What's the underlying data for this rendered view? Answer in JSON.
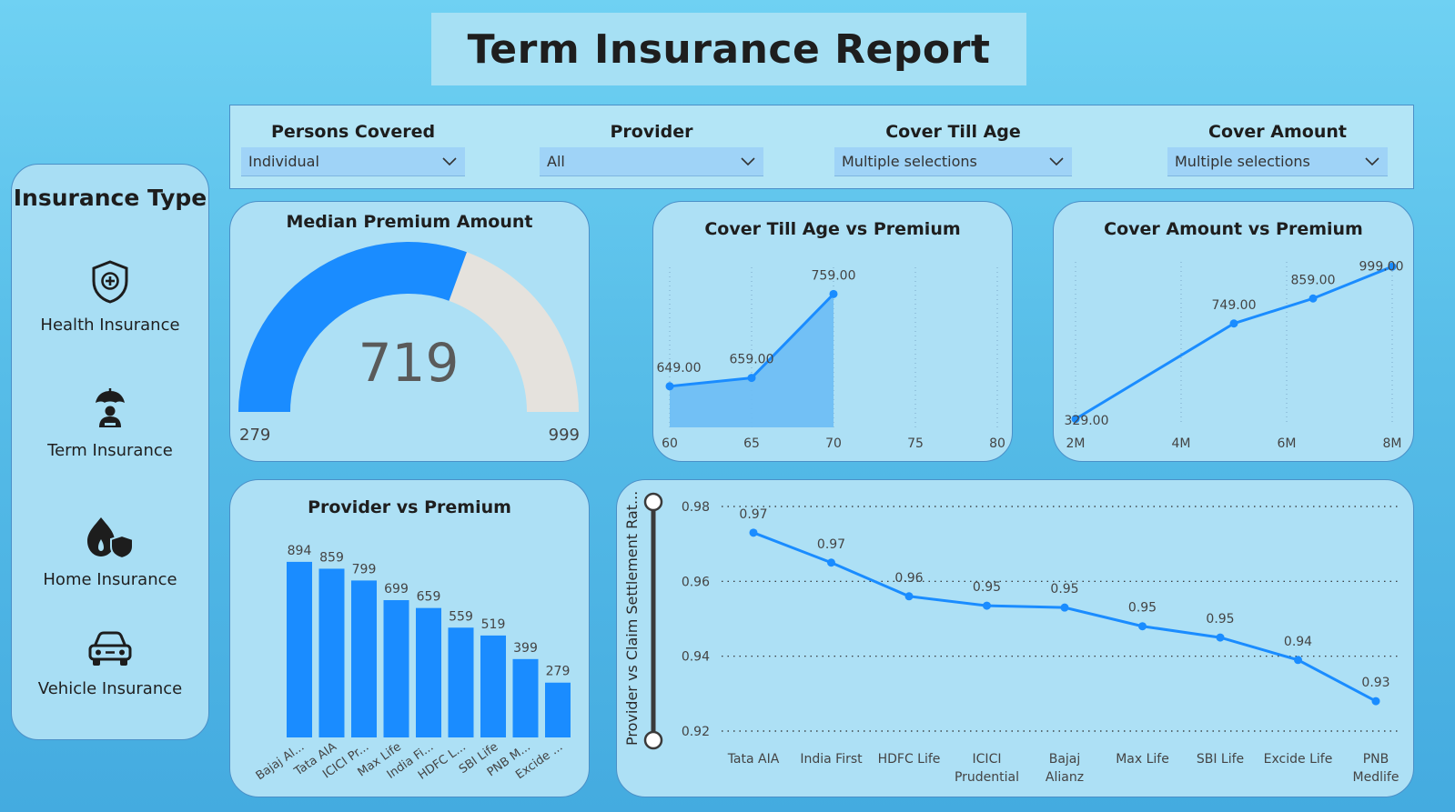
{
  "header": {
    "title": "Term Insurance Report"
  },
  "filters": [
    {
      "label": "Persons Covered",
      "value": "Individual"
    },
    {
      "label": "Provider",
      "value": "All"
    },
    {
      "label": "Cover Till Age",
      "value": "Multiple selections"
    },
    {
      "label": "Cover Amount",
      "value": "Multiple selections"
    }
  ],
  "sidebar": {
    "title": "Insurance Type",
    "items": [
      {
        "label": "Health Insurance",
        "icon": "shield-plus-icon"
      },
      {
        "label": "Term Insurance",
        "icon": "umbrella-person-icon"
      },
      {
        "label": "Home Insurance",
        "icon": "fire-shield-icon"
      },
      {
        "label": "Vehicle Insurance",
        "icon": "car-icon"
      }
    ]
  },
  "colors": {
    "accent": "#1a8cff",
    "gauge_rest": "#e5e2dd",
    "area_fill": "#6cbcf5"
  },
  "gauge": {
    "title": "Median Premium Amount",
    "value": "719",
    "min": "279",
    "max": "999",
    "numeric_value": 719,
    "numeric_min": 279,
    "numeric_max": 999
  },
  "chart_data": [
    {
      "type": "area",
      "title": "Cover Till Age vs Premium",
      "x": [
        60,
        65,
        70
      ],
      "values": [
        649,
        659,
        759
      ],
      "data_labels": [
        "649.00",
        "659.00",
        "759.00"
      ],
      "x_ticks": [
        "60",
        "65",
        "70",
        "75",
        "80"
      ],
      "xlim": [
        60,
        80
      ],
      "ylim": [
        600,
        780
      ]
    },
    {
      "type": "line",
      "title": "Cover Amount vs Premium",
      "x": [
        2,
        5,
        6.5,
        8
      ],
      "values": [
        329,
        749,
        859,
        999
      ],
      "data_labels": [
        "329.00",
        "749.00",
        "859.00",
        "999.00"
      ],
      "x_ticks": [
        "2M",
        "4M",
        "6M",
        "8M"
      ],
      "xlim": [
        2,
        8
      ],
      "ylim": [
        300,
        1020
      ]
    },
    {
      "type": "bar",
      "title": "Provider vs Premium",
      "categories": [
        "Bajaj Al...",
        "Tata AIA",
        "ICICI Pr...",
        "Max Life",
        "India Fi...",
        "HDFC L...",
        "SBI Life",
        "PNB M...",
        "Excide ..."
      ],
      "values": [
        894,
        859,
        799,
        699,
        659,
        559,
        519,
        399,
        279
      ],
      "ylim": [
        0,
        1000
      ]
    },
    {
      "type": "line",
      "ylabel": "Provider vs Claim Settlement Rat...",
      "categories": [
        "Tata AIA",
        "India First",
        "HDFC Life",
        "ICICI Prudential",
        "Bajaj Alianz",
        "Max Life",
        "SBI Life",
        "Excide Life",
        "PNB Medlife"
      ],
      "category_lines": [
        [
          "Tata AIA"
        ],
        [
          "India First"
        ],
        [
          "HDFC Life"
        ],
        [
          "ICICI",
          "Prudential"
        ],
        [
          "Bajaj",
          "Alianz"
        ],
        [
          "Max Life"
        ],
        [
          "SBI Life"
        ],
        [
          "Excide Life"
        ],
        [
          "PNB",
          "Medlife"
        ]
      ],
      "values": [
        0.973,
        0.965,
        0.956,
        0.9535,
        0.953,
        0.948,
        0.945,
        0.939,
        0.928
      ],
      "data_labels": [
        "0.97",
        "0.97",
        "0.96",
        "0.95",
        "0.95",
        "0.95",
        "0.95",
        "0.94",
        "0.93"
      ],
      "y_ticks": [
        "0.98",
        "0.96",
        "0.94",
        "0.92"
      ],
      "ylim": [
        0.92,
        0.98
      ],
      "grid": true
    }
  ]
}
